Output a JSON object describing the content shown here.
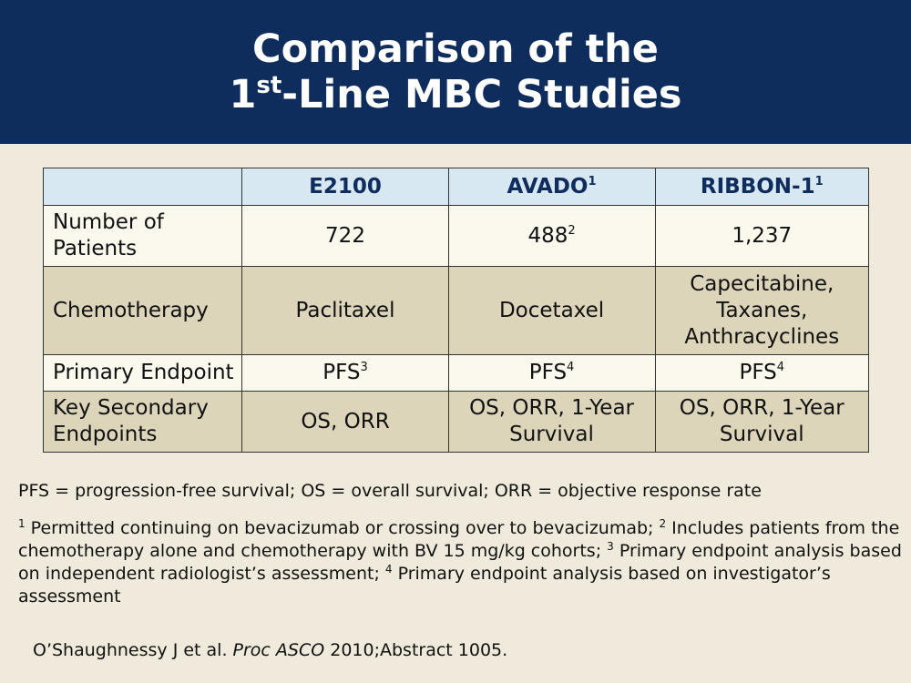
{
  "title": {
    "line1": "Comparison of the",
    "line2_prefix": "1",
    "line2_sup": "st",
    "line2_rest": "-Line MBC Studies"
  },
  "table": {
    "headers": [
      {
        "text": "",
        "sup": ""
      },
      {
        "text": "E2100",
        "sup": ""
      },
      {
        "text": "AVADO",
        "sup": "1"
      },
      {
        "text": "RIBBON-1",
        "sup": "1"
      }
    ],
    "rows": [
      {
        "label_lines": [
          "Number of",
          "Patients"
        ],
        "cells": [
          {
            "lines": [
              "722"
            ],
            "sup": ""
          },
          {
            "lines": [
              "488"
            ],
            "sup": "2"
          },
          {
            "lines": [
              "1,237"
            ],
            "sup": ""
          }
        ]
      },
      {
        "label_lines": [
          "Chemotherapy"
        ],
        "cells": [
          {
            "lines": [
              "Paclitaxel"
            ],
            "sup": ""
          },
          {
            "lines": [
              "Docetaxel"
            ],
            "sup": ""
          },
          {
            "lines": [
              "Capecitabine,",
              "Taxanes,",
              "Anthracyclines"
            ],
            "sup": ""
          }
        ]
      },
      {
        "label_lines": [
          "Primary Endpoint"
        ],
        "cells": [
          {
            "lines": [
              "PFS"
            ],
            "sup": "3"
          },
          {
            "lines": [
              "PFS"
            ],
            "sup": "4"
          },
          {
            "lines": [
              "PFS"
            ],
            "sup": "4"
          }
        ]
      },
      {
        "label_lines": [
          "Key Secondary",
          "Endpoints"
        ],
        "cells": [
          {
            "lines": [
              "OS, ORR"
            ],
            "sup": ""
          },
          {
            "lines": [
              "OS, ORR, 1-Year",
              "Survival"
            ],
            "sup": ""
          },
          {
            "lines": [
              "OS, ORR, 1-Year",
              "Survival"
            ],
            "sup": ""
          }
        ]
      }
    ]
  },
  "notes": {
    "abbreviations": "PFS = progression-free survival; OS = overall survival; ORR = objective response rate",
    "footnotes": [
      {
        "num": "1",
        "text": " Permitted continuing on bevacizumab or crossing over to bevacizumab; "
      },
      {
        "num": "2",
        "text": " Includes patients from the chemotherapy alone and chemotherapy with BV 15 mg/kg cohorts; "
      },
      {
        "num": "3",
        "text": " Primary endpoint analysis based on independent radiologist’s assessment; "
      },
      {
        "num": "4",
        "text": " Primary endpoint analysis based on investigator’s assessment"
      }
    ]
  },
  "citation": {
    "authors": "O’Shaughnessy J et al. ",
    "journal": "Proc ASCO",
    "rest": " 2010;Abstract 1005."
  }
}
